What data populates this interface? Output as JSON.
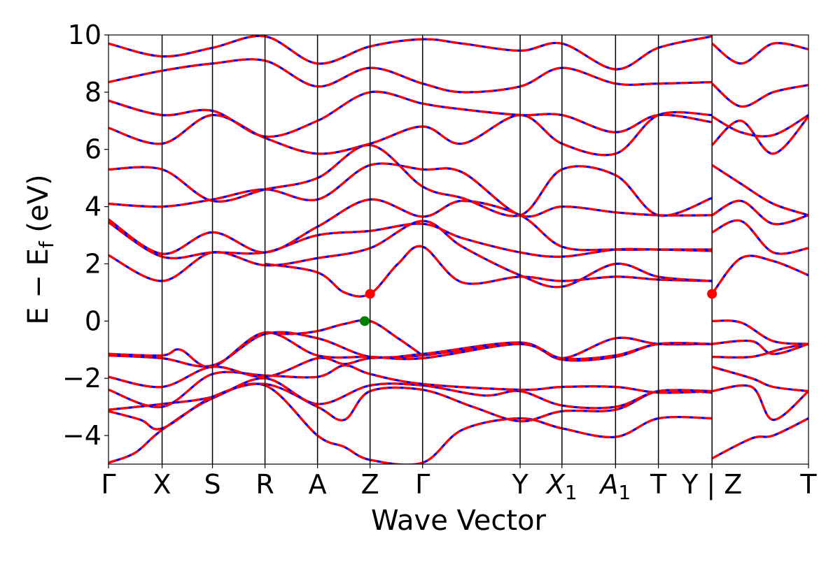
{
  "chart_data": {
    "type": "line",
    "title": "",
    "xlabel": "Wave Vector",
    "ylabel": "E − E_f (eV)",
    "ylabel_parts": {
      "pre": "E − E",
      "sub": "f",
      "post": " (eV)"
    },
    "ylim": [
      -5,
      10
    ],
    "yticks": [
      -4,
      -2,
      0,
      2,
      4,
      6,
      8,
      10
    ],
    "kpoints": [
      {
        "label": "Γ",
        "sub": "",
        "x": 0.0
      },
      {
        "label": "X",
        "sub": "",
        "x": 0.5
      },
      {
        "label": "S",
        "sub": "",
        "x": 0.97
      },
      {
        "label": "R",
        "sub": "",
        "x": 1.46
      },
      {
        "label": "A",
        "sub": "",
        "x": 1.95
      },
      {
        "label": "Z",
        "sub": "",
        "x": 2.44
      },
      {
        "label": "Γ",
        "sub": "",
        "x": 2.93
      },
      {
        "label": "Y",
        "sub": "",
        "x": 3.84
      },
      {
        "label": "X",
        "sub": "1",
        "x": 4.23
      },
      {
        "label": "A",
        "sub": "1",
        "x": 4.73
      },
      {
        "label": "T",
        "sub": "",
        "x": 5.13
      },
      {
        "label": "Y | Z",
        "sub": "",
        "x": 5.63
      },
      {
        "label": "T",
        "sub": "",
        "x": 6.53
      }
    ],
    "xlim": [
      0,
      6.53
    ],
    "line_styles": {
      "solid_color": "#0000ff",
      "dashed_color": "#ff0000"
    },
    "markers": [
      {
        "name": "CBM",
        "x": 2.44,
        "y": 0.95,
        "color": "#ff0000"
      },
      {
        "name": "CBM",
        "x": 5.63,
        "y": 0.95,
        "color": "#ff0000"
      },
      {
        "name": "VBM",
        "x": 2.39,
        "y": 0.0,
        "color": "#008000"
      }
    ],
    "bands": [
      [
        [
          0,
          -4.95
        ],
        [
          0.25,
          -4.6
        ],
        [
          0.5,
          -3.8
        ],
        [
          0.97,
          -2.7
        ],
        [
          1.46,
          -2.25
        ],
        [
          1.95,
          -4.0
        ],
        [
          2.2,
          -4.4
        ],
        [
          2.44,
          -4.85
        ],
        [
          2.93,
          -4.95
        ],
        [
          3.3,
          -3.8
        ],
        [
          3.84,
          -3.4
        ],
        [
          4.23,
          -3.75
        ],
        [
          4.73,
          -4.05
        ],
        [
          5.13,
          -3.4
        ],
        [
          5.63,
          -3.4
        ]
      ],
      [
        [
          0,
          -3.15
        ],
        [
          0.3,
          -3.45
        ],
        [
          0.5,
          -3.75
        ],
        [
          0.97,
          -2.65
        ],
        [
          1.46,
          -2.2
        ],
        [
          1.95,
          -3.0
        ],
        [
          2.2,
          -3.45
        ],
        [
          2.44,
          -2.45
        ],
        [
          2.93,
          -2.4
        ],
        [
          3.4,
          -3.0
        ],
        [
          3.84,
          -3.5
        ],
        [
          4.23,
          -3.15
        ],
        [
          4.73,
          -3.1
        ],
        [
          5.13,
          -2.45
        ],
        [
          5.63,
          -2.5
        ]
      ],
      [
        [
          0,
          -3.1
        ],
        [
          0.5,
          -2.9
        ],
        [
          0.97,
          -2.65
        ],
        [
          1.46,
          -2.0
        ],
        [
          1.95,
          -2.9
        ],
        [
          2.44,
          -2.25
        ],
        [
          2.93,
          -2.25
        ],
        [
          3.5,
          -2.6
        ],
        [
          3.84,
          -2.45
        ],
        [
          4.23,
          -2.95
        ],
        [
          4.73,
          -3.0
        ],
        [
          5.13,
          -2.45
        ],
        [
          5.63,
          -2.45
        ]
      ],
      [
        [
          0,
          -2.4
        ],
        [
          0.5,
          -3.0
        ],
        [
          0.97,
          -1.85
        ],
        [
          1.46,
          -1.9
        ],
        [
          1.95,
          -1.95
        ],
        [
          2.2,
          -1.55
        ],
        [
          2.44,
          -1.85
        ],
        [
          2.93,
          -2.2
        ],
        [
          3.84,
          -2.4
        ],
        [
          4.23,
          -2.3
        ],
        [
          4.73,
          -2.3
        ],
        [
          5.13,
          -2.5
        ],
        [
          5.63,
          -2.45
        ]
      ],
      [
        [
          0,
          -1.95
        ],
        [
          0.5,
          -2.3
        ],
        [
          0.97,
          -1.6
        ],
        [
          1.46,
          -1.95
        ],
        [
          1.95,
          -1.3
        ],
        [
          2.2,
          -1.5
        ],
        [
          2.44,
          -1.3
        ],
        [
          2.93,
          -1.2
        ],
        [
          3.84,
          -0.8
        ],
        [
          4.23,
          -1.35
        ],
        [
          4.73,
          -1.25
        ],
        [
          5.13,
          -0.8
        ],
        [
          5.63,
          -0.8
        ]
      ],
      [
        [
          0,
          -1.2
        ],
        [
          0.5,
          -1.3
        ],
        [
          0.97,
          -1.55
        ],
        [
          1.46,
          -0.45
        ],
        [
          1.95,
          -0.6
        ],
        [
          2.44,
          -1.25
        ],
        [
          2.93,
          -1.15
        ],
        [
          3.84,
          -0.75
        ],
        [
          4.23,
          -1.3
        ],
        [
          4.73,
          -0.6
        ],
        [
          5.13,
          -0.8
        ],
        [
          5.63,
          -0.8
        ]
      ],
      [
        [
          0,
          -1.15
        ],
        [
          0.5,
          -1.2
        ],
        [
          0.67,
          -1.0
        ],
        [
          0.97,
          -1.6
        ],
        [
          1.46,
          -0.4
        ],
        [
          1.95,
          -1.2
        ],
        [
          2.44,
          -1.25
        ],
        [
          2.93,
          -1.3
        ],
        [
          3.84,
          -0.8
        ],
        [
          4.23,
          -1.3
        ],
        [
          4.73,
          -1.2
        ],
        [
          5.13,
          -0.8
        ],
        [
          5.63,
          -0.8
        ]
      ],
      [
        [
          1.46,
          -0.4
        ],
        [
          1.7,
          -0.45
        ],
        [
          1.95,
          -0.35
        ],
        [
          2.2,
          -0.1
        ],
        [
          2.44,
          0.0
        ],
        [
          2.7,
          -0.6
        ],
        [
          2.93,
          -1.2
        ]
      ],
      [
        [
          1.46,
          2.0
        ],
        [
          1.95,
          1.7
        ],
        [
          2.2,
          1.0
        ],
        [
          2.44,
          0.95
        ],
        [
          2.7,
          2.0
        ],
        [
          2.93,
          2.6
        ],
        [
          3.3,
          1.35
        ],
        [
          3.84,
          1.55
        ],
        [
          4.23,
          1.4
        ],
        [
          4.73,
          1.55
        ],
        [
          5.13,
          1.45
        ],
        [
          5.63,
          1.4
        ]
      ],
      [
        [
          0,
          2.3
        ],
        [
          0.5,
          1.4
        ],
        [
          0.97,
          2.4
        ],
        [
          1.46,
          1.95
        ],
        [
          1.95,
          2.2
        ],
        [
          2.44,
          2.55
        ],
        [
          2.93,
          3.5
        ],
        [
          3.3,
          2.6
        ],
        [
          3.84,
          1.6
        ],
        [
          4.23,
          1.2
        ],
        [
          4.73,
          2.0
        ],
        [
          5.13,
          1.55
        ],
        [
          5.63,
          1.4
        ]
      ],
      [
        [
          0,
          3.45
        ],
        [
          0.5,
          2.25
        ],
        [
          0.97,
          2.4
        ],
        [
          1.46,
          2.4
        ],
        [
          1.95,
          3.0
        ],
        [
          2.44,
          3.15
        ],
        [
          2.93,
          3.4
        ],
        [
          3.3,
          2.9
        ],
        [
          3.84,
          2.4
        ],
        [
          4.23,
          2.25
        ],
        [
          4.73,
          2.5
        ],
        [
          5.13,
          2.5
        ],
        [
          5.63,
          2.5
        ]
      ],
      [
        [
          0,
          3.55
        ],
        [
          0.5,
          2.35
        ],
        [
          0.97,
          3.1
        ],
        [
          1.46,
          2.4
        ],
        [
          1.95,
          3.3
        ],
        [
          2.44,
          4.25
        ],
        [
          2.93,
          3.65
        ],
        [
          3.3,
          4.2
        ],
        [
          3.84,
          3.7
        ],
        [
          4.23,
          2.6
        ],
        [
          4.73,
          2.5
        ],
        [
          5.13,
          2.5
        ],
        [
          5.63,
          2.45
        ]
      ],
      [
        [
          0,
          4.1
        ],
        [
          0.5,
          4.0
        ],
        [
          0.97,
          4.25
        ],
        [
          1.46,
          4.6
        ],
        [
          1.95,
          4.25
        ],
        [
          2.44,
          5.45
        ],
        [
          2.93,
          5.3
        ],
        [
          3.3,
          5.2
        ],
        [
          3.84,
          3.7
        ],
        [
          4.23,
          4.0
        ],
        [
          4.73,
          3.8
        ],
        [
          5.13,
          3.7
        ],
        [
          5.63,
          3.7
        ]
      ],
      [
        [
          0,
          5.3
        ],
        [
          0.5,
          5.3
        ],
        [
          0.97,
          4.2
        ],
        [
          1.46,
          4.6
        ],
        [
          1.95,
          5.0
        ],
        [
          2.44,
          6.15
        ],
        [
          2.93,
          4.7
        ],
        [
          3.3,
          4.3
        ],
        [
          3.84,
          3.7
        ],
        [
          4.23,
          5.3
        ],
        [
          4.73,
          5.1
        ],
        [
          5.13,
          3.7
        ],
        [
          5.63,
          4.3
        ]
      ],
      [
        [
          0,
          6.75
        ],
        [
          0.5,
          6.2
        ],
        [
          0.97,
          7.2
        ],
        [
          1.46,
          6.4
        ],
        [
          1.95,
          5.85
        ],
        [
          2.44,
          6.2
        ],
        [
          2.93,
          6.8
        ],
        [
          3.3,
          6.2
        ],
        [
          3.84,
          7.2
        ],
        [
          4.23,
          6.2
        ],
        [
          4.73,
          5.85
        ],
        [
          5.13,
          7.2
        ],
        [
          5.63,
          7.2
        ]
      ],
      [
        [
          0,
          7.7
        ],
        [
          0.5,
          7.2
        ],
        [
          0.97,
          7.35
        ],
        [
          1.46,
          6.45
        ],
        [
          1.95,
          7.0
        ],
        [
          2.44,
          8.0
        ],
        [
          2.93,
          7.6
        ],
        [
          3.3,
          7.4
        ],
        [
          3.84,
          7.2
        ],
        [
          4.23,
          7.2
        ],
        [
          4.73,
          6.6
        ],
        [
          5.13,
          7.2
        ],
        [
          5.63,
          6.95
        ]
      ],
      [
        [
          0,
          8.35
        ],
        [
          0.5,
          8.75
        ],
        [
          0.97,
          9.0
        ],
        [
          1.46,
          9.1
        ],
        [
          1.95,
          8.2
        ],
        [
          2.44,
          8.85
        ],
        [
          2.93,
          8.3
        ],
        [
          3.3,
          8.0
        ],
        [
          3.84,
          8.2
        ],
        [
          4.23,
          8.85
        ],
        [
          4.73,
          8.3
        ],
        [
          5.13,
          8.3
        ],
        [
          5.63,
          8.35
        ]
      ],
      [
        [
          0,
          9.7
        ],
        [
          0.5,
          9.25
        ],
        [
          0.97,
          9.55
        ],
        [
          1.46,
          9.95
        ],
        [
          1.95,
          9.0
        ],
        [
          2.44,
          9.6
        ],
        [
          2.93,
          9.85
        ],
        [
          3.3,
          9.7
        ],
        [
          3.84,
          9.45
        ],
        [
          4.23,
          9.7
        ],
        [
          4.73,
          8.8
        ],
        [
          5.13,
          9.55
        ],
        [
          5.63,
          9.95
        ]
      ],
      [
        [
          5.63,
          -4.8
        ],
        [
          6.0,
          -4.1
        ],
        [
          6.2,
          -4.0
        ],
        [
          6.53,
          -3.4
        ]
      ],
      [
        [
          5.63,
          -2.45
        ],
        [
          6.0,
          -2.3
        ],
        [
          6.2,
          -3.45
        ],
        [
          6.53,
          -2.45
        ]
      ],
      [
        [
          5.63,
          -1.6
        ],
        [
          6.0,
          -2.0
        ],
        [
          6.2,
          -2.3
        ],
        [
          6.53,
          -2.45
        ]
      ],
      [
        [
          5.63,
          -1.25
        ],
        [
          6.0,
          -1.25
        ],
        [
          6.3,
          -0.95
        ],
        [
          6.53,
          -0.8
        ]
      ],
      [
        [
          5.63,
          -0.8
        ],
        [
          6.0,
          -0.7
        ],
        [
          6.2,
          -1.15
        ],
        [
          6.53,
          -0.8
        ]
      ],
      [
        [
          5.63,
          0.0
        ],
        [
          5.9,
          -0.05
        ],
        [
          6.2,
          -0.7
        ],
        [
          6.53,
          -0.8
        ]
      ],
      [
        [
          5.63,
          0.95
        ],
        [
          5.9,
          2.2
        ],
        [
          6.2,
          2.1
        ],
        [
          6.53,
          1.6
        ]
      ],
      [
        [
          5.63,
          3.1
        ],
        [
          5.9,
          3.5
        ],
        [
          6.2,
          2.4
        ],
        [
          6.53,
          2.55
        ]
      ],
      [
        [
          5.63,
          3.7
        ],
        [
          5.9,
          4.2
        ],
        [
          6.2,
          3.4
        ],
        [
          6.53,
          3.7
        ]
      ],
      [
        [
          5.63,
          5.45
        ],
        [
          5.9,
          4.8
        ],
        [
          6.2,
          4.1
        ],
        [
          6.53,
          3.7
        ]
      ],
      [
        [
          5.63,
          6.15
        ],
        [
          5.9,
          7.0
        ],
        [
          6.2,
          5.85
        ],
        [
          6.53,
          7.15
        ]
      ],
      [
        [
          5.63,
          7.15
        ],
        [
          5.9,
          6.6
        ],
        [
          6.2,
          6.5
        ],
        [
          6.53,
          7.2
        ]
      ],
      [
        [
          5.63,
          8.3
        ],
        [
          5.9,
          7.5
        ],
        [
          6.2,
          8.0
        ],
        [
          6.53,
          8.25
        ]
      ],
      [
        [
          5.63,
          9.7
        ],
        [
          5.9,
          9.0
        ],
        [
          6.2,
          9.7
        ],
        [
          6.53,
          9.5
        ]
      ]
    ]
  }
}
